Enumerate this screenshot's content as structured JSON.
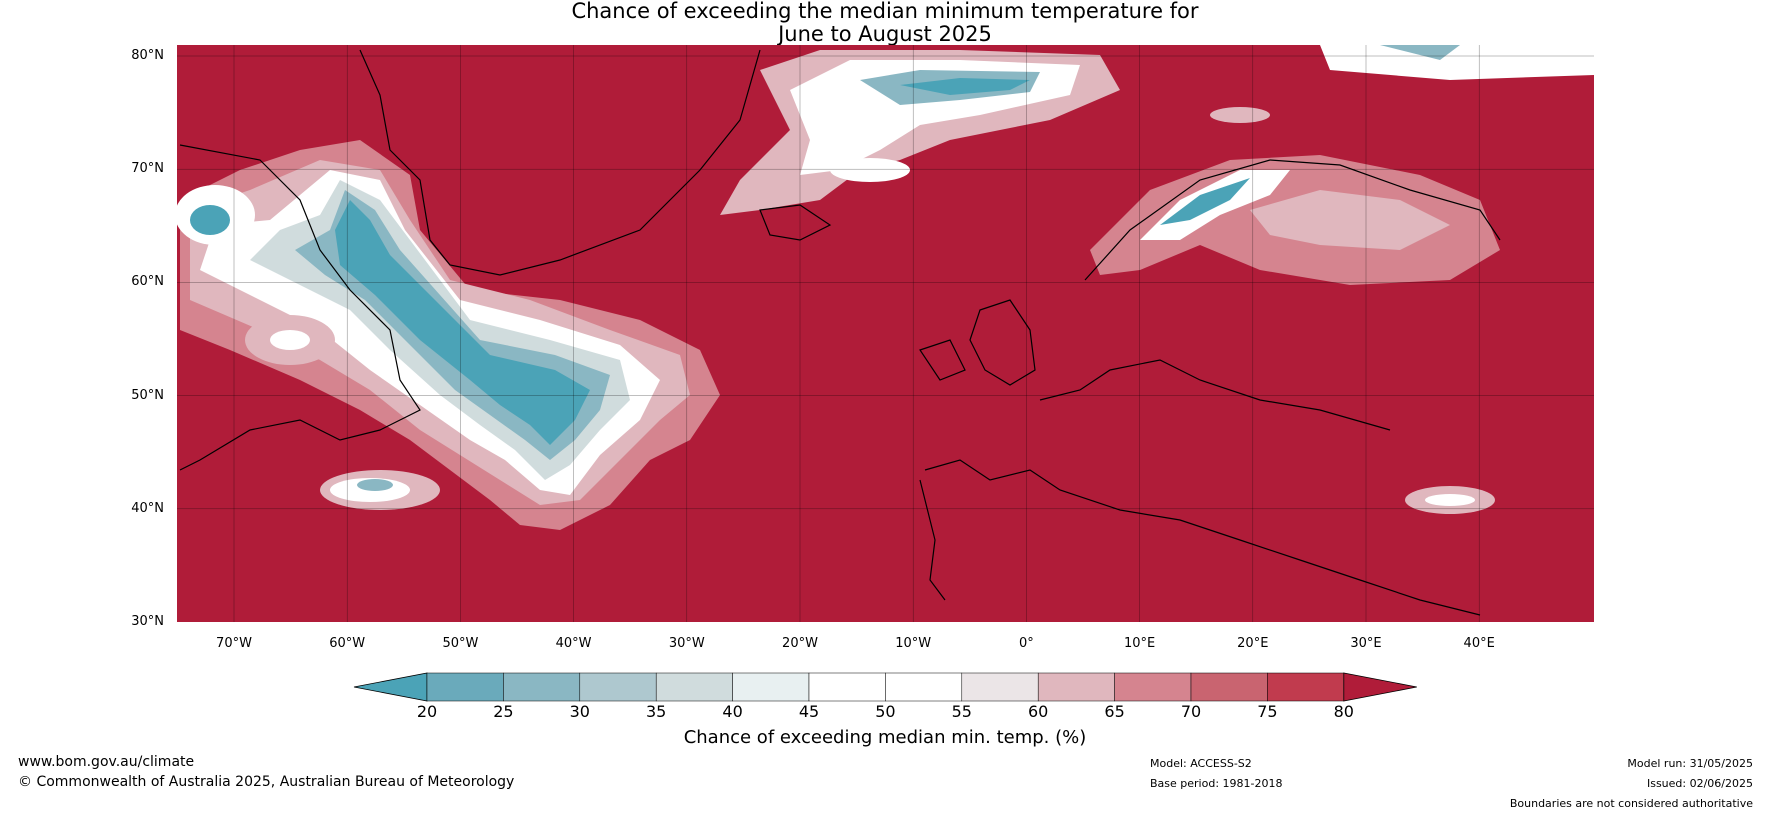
{
  "title_line1": "Chance of exceeding the median minimum temperature for",
  "title_line2": "June to August 2025",
  "lat_labels": [
    "80°N",
    "70°N",
    "60°N",
    "50°N",
    "40°N",
    "30°N"
  ],
  "lon_labels": [
    "70°W",
    "60°W",
    "50°W",
    "40°W",
    "30°W",
    "20°W",
    "10°W",
    "0°",
    "10°E",
    "20°E",
    "30°E",
    "40°E"
  ],
  "colorbar": {
    "ticks": [
      "20",
      "25",
      "30",
      "35",
      "40",
      "45",
      "50",
      "55",
      "60",
      "65",
      "70",
      "75",
      "80"
    ],
    "colors": [
      "#4ba3b7",
      "#6aaabb",
      "#8ab7c3",
      "#aec8cf",
      "#d0dcdd",
      "#e8f0f1",
      "#ffffff",
      "#ffffff",
      "#ebe5e7",
      "#e0b7be",
      "#d5848f",
      "#c96470",
      "#c13b4e",
      "#b01c39"
    ],
    "label": "Chance of exceeding median min. temp. (%)"
  },
  "colors": {
    "above": "#b01c39",
    "below": "#4ba3b7"
  },
  "footer": {
    "url": "www.bom.gov.au/climate",
    "copyright": "© Commonwealth of Australia 2025, Australian Bureau of Meteorology",
    "model": "Model: ACCESS-S2",
    "base_period": "Base period: 1981-2018",
    "model_run": "Model run: 31/05/2025",
    "issued": "Issued: 02/06/2025",
    "boundaries": "Boundaries are not considered authoritative"
  }
}
